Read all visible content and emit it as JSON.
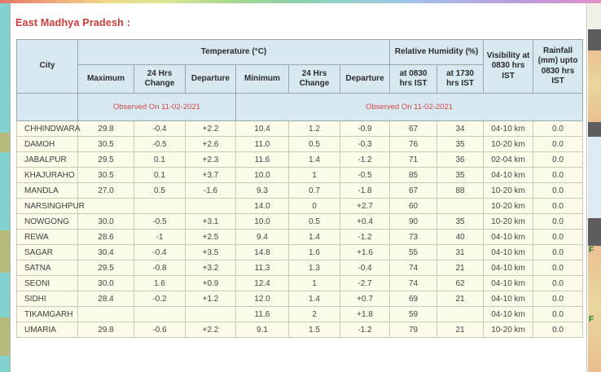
{
  "page": {
    "title": "East Madhya Pradesh :"
  },
  "table": {
    "columns": {
      "city": "City",
      "temperature_group": "Temperature (°C)",
      "humidity_group": "Relative Humidity (%)",
      "visibility": "Visibility at 0830 hrs IST",
      "rainfall": "Rainfall (mm) upto 0830 hrs IST",
      "temp_sub": [
        "Maximum",
        "24 Hrs Change",
        "Departure",
        "Minimum",
        "24 Hrs Change",
        "Departure"
      ],
      "humidity_sub": [
        "at 0830 hrs IST",
        "at 1730 hrs IST"
      ],
      "observed_left": "Observed On 11-02-2021",
      "observed_right": "Observed On 11-02-2021"
    },
    "rows": [
      {
        "city": "CHHINDWARA",
        "values": [
          "29.8",
          "-0.4",
          "+2.2",
          "10.4",
          "1.2",
          "-0.9",
          "67",
          "34",
          "04-10 km",
          "0.0"
        ]
      },
      {
        "city": "DAMOH",
        "values": [
          "30.5",
          "-0.5",
          "+2.6",
          "11.0",
          "0.5",
          "-0.3",
          "76",
          "35",
          "10-20 km",
          "0.0"
        ]
      },
      {
        "city": "JABALPUR",
        "values": [
          "29.5",
          "0.1",
          "+2.3",
          "11.6",
          "1.4",
          "-1.2",
          "71",
          "36",
          "02-04 km",
          "0.0"
        ]
      },
      {
        "city": "KHAJURAHO",
        "values": [
          "30.5",
          "0.1",
          "+3.7",
          "10.0",
          "1",
          "-0.5",
          "85",
          "35",
          "04-10 km",
          "0.0"
        ]
      },
      {
        "city": "MANDLA",
        "values": [
          "27.0",
          "0.5",
          "-1.6",
          "9.3",
          "0.7",
          "-1.8",
          "67",
          "88",
          "10-20 km",
          "0.0"
        ]
      },
      {
        "city": "NARSINGHPUR",
        "values": [
          "",
          "",
          "",
          "14.0",
          "0",
          "+2.7",
          "60",
          "",
          "10-20 km",
          "0.0"
        ]
      },
      {
        "city": "NOWGONG",
        "values": [
          "30.0",
          "-0.5",
          "+3.1",
          "10.0",
          "0.5",
          "+0.4",
          "90",
          "35",
          "10-20 km",
          "0.0"
        ]
      },
      {
        "city": "REWA",
        "values": [
          "28.6",
          "-1",
          "+2.5",
          "9.4",
          "1.4",
          "-1.2",
          "73",
          "40",
          "04-10 km",
          "0.0"
        ]
      },
      {
        "city": "SAGAR",
        "values": [
          "30.4",
          "-0.4",
          "+3.5",
          "14.8",
          "1.6",
          "+1.6",
          "55",
          "31",
          "04-10 km",
          "0.0"
        ]
      },
      {
        "city": "SATNA",
        "values": [
          "29.5",
          "-0.8",
          "+3.2",
          "11.3",
          "1.3",
          "-0.4",
          "74",
          "21",
          "04-10 km",
          "0.0"
        ]
      },
      {
        "city": "SEONI",
        "values": [
          "30.0",
          "1.6",
          "+0.9",
          "12.4",
          "1",
          "-2.7",
          "74",
          "62",
          "04-10 km",
          "0.0"
        ]
      },
      {
        "city": "SIDHI",
        "values": [
          "28.4",
          "-0.2",
          "+1.2",
          "12.0",
          "1.4",
          "+0.7",
          "69",
          "21",
          "04-10 km",
          "0.0"
        ]
      },
      {
        "city": "TIKAMGARH",
        "values": [
          "",
          "",
          "",
          "11.6",
          "2",
          "+1.8",
          "59",
          "",
          "04-10 km",
          "0.0"
        ]
      },
      {
        "city": "UMARIA",
        "values": [
          "29.8",
          "-0.6",
          "+2.2",
          "9.1",
          "1.5",
          "-1.2",
          "79",
          "21",
          "10-20 km",
          "0.0"
        ]
      }
    ]
  },
  "background": {
    "map_label_1": "F",
    "map_label_2": "F"
  },
  "colors": {
    "header_bg": "#d7e8f1",
    "row_bg": "#fcfae9",
    "title_red": "#cc3a3a",
    "observed_red": "#d14a4a",
    "map_label_green": "#1d7a33"
  }
}
